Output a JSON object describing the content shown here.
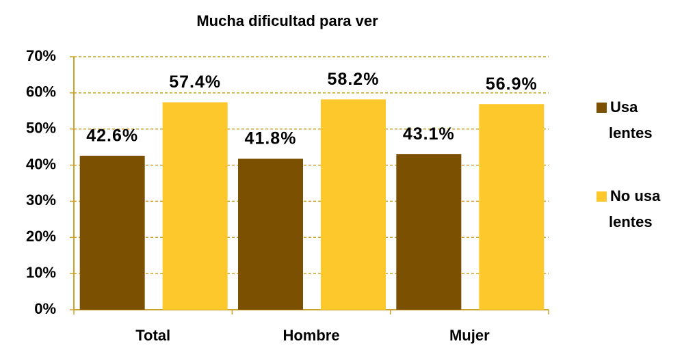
{
  "chart_data": {
    "type": "bar",
    "title": "Mucha dificultad para ver",
    "categories": [
      "Total",
      "Hombre",
      "Mujer"
    ],
    "series": [
      {
        "name": "Usa lentes",
        "color": "#7b5000",
        "values": [
          42.6,
          41.8,
          43.1
        ],
        "value_labels": [
          "42.6%",
          "41.8%",
          "43.1%"
        ]
      },
      {
        "name": "No usa lentes",
        "color": "#fdc82b",
        "values": [
          57.4,
          58.2,
          56.9
        ],
        "value_labels": [
          "57.4%",
          "58.2%",
          "56.9%"
        ]
      }
    ],
    "ylim": [
      0,
      70
    ],
    "yticks": [
      {
        "value": 0,
        "label": "0%"
      },
      {
        "value": 10,
        "label": "10%"
      },
      {
        "value": 20,
        "label": "20%"
      },
      {
        "value": 30,
        "label": "30%"
      },
      {
        "value": 40,
        "label": "40%"
      },
      {
        "value": 50,
        "label": "50%"
      },
      {
        "value": 60,
        "label": "60%"
      },
      {
        "value": 70,
        "label": "70%"
      }
    ],
    "grid": true,
    "legend": "right"
  }
}
